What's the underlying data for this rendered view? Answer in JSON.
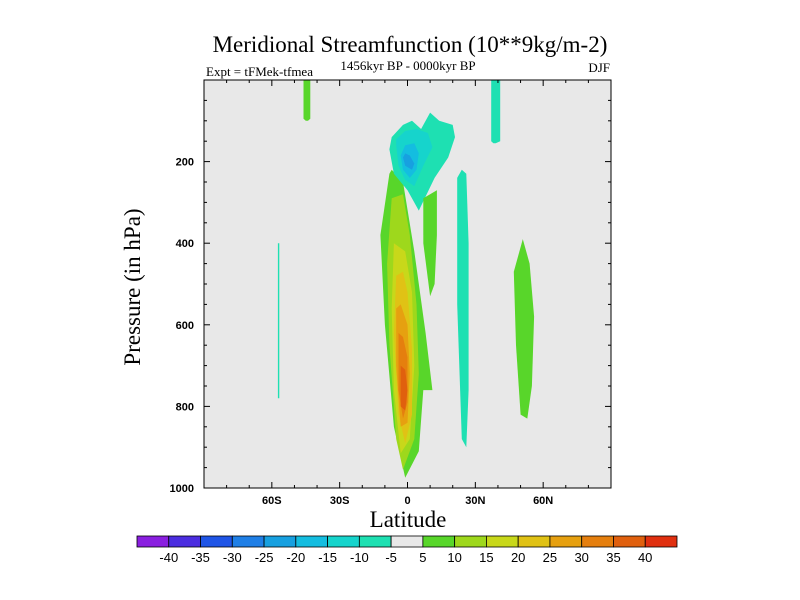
{
  "chart_data": {
    "type": "contour",
    "title": "Meridional Streamfunction (10**9kg/m-2)",
    "subtitle": "1456kyr BP - 0000kyr BP",
    "left_label": "Expt = tFMek-tfmea",
    "right_label": "DJF",
    "xlabel": "Latitude",
    "ylabel": "Pressure (in hPa)",
    "xlim": [
      -90,
      90
    ],
    "ylim": [
      0,
      1000
    ],
    "y_inverted": true,
    "x_ticks": [
      {
        "value": -60,
        "label": "60S"
      },
      {
        "value": -30,
        "label": "30S"
      },
      {
        "value": 0,
        "label": "0"
      },
      {
        "value": 30,
        "label": "30N"
      },
      {
        "value": 60,
        "label": "60N"
      }
    ],
    "y_ticks": [
      {
        "value": 200,
        "label": "200"
      },
      {
        "value": 400,
        "label": "400"
      },
      {
        "value": 600,
        "label": "600"
      },
      {
        "value": 800,
        "label": "800"
      },
      {
        "value": 1000,
        "label": "1000"
      }
    ],
    "contour_levels": [
      "-40",
      "-35",
      "-30",
      "-25",
      "-20",
      "-15",
      "-10",
      "-5",
      "5",
      "10",
      "15",
      "20",
      "25",
      "30",
      "35",
      "40"
    ],
    "colors": [
      "#8a1fe0",
      "#4b2de0",
      "#1f55e6",
      "#1f7fe6",
      "#17a0e0",
      "#14bde0",
      "#16d4cc",
      "#1ee0b2",
      "#e8e8e8",
      "#58d62a",
      "#9ed81c",
      "#c8d81a",
      "#e0c215",
      "#e6a010",
      "#e57f0e",
      "#e0600e",
      "#e03010"
    ],
    "background_color": "#e8e8e8",
    "regions": [
      {
        "name": "positive-cell-5",
        "level_index": 9,
        "lat": [
          -8,
          -12,
          -10,
          -6,
          -1,
          5,
          7,
          11,
          8,
          3,
          -2,
          -7
        ],
        "p": [
          230,
          380,
          600,
          850,
          975,
          910,
          760,
          760,
          620,
          420,
          250,
          220
        ]
      },
      {
        "name": "positive-cell-10",
        "level_index": 10,
        "lat": [
          -7,
          -9,
          -8,
          -5,
          -2,
          3,
          5,
          4,
          1,
          -2
        ],
        "p": [
          290,
          450,
          650,
          880,
          955,
          880,
          720,
          550,
          380,
          280
        ]
      },
      {
        "name": "positive-cell-15",
        "level_index": 11,
        "lat": [
          -6,
          -7,
          -6,
          -3,
          1,
          3,
          2,
          -1
        ],
        "p": [
          400,
          560,
          760,
          915,
          880,
          700,
          520,
          420
        ]
      },
      {
        "name": "positive-cell-20",
        "level_index": 12,
        "lat": [
          -5,
          -6,
          -4,
          -1,
          2,
          2,
          0,
          -2
        ],
        "p": [
          480,
          620,
          820,
          890,
          820,
          660,
          520,
          470
        ]
      },
      {
        "name": "positive-cell-25",
        "level_index": 13,
        "lat": [
          -5,
          -5,
          -3,
          0,
          1,
          0,
          -3
        ],
        "p": [
          560,
          700,
          850,
          840,
          720,
          600,
          550
        ]
      },
      {
        "name": "positive-cell-30",
        "level_index": 14,
        "lat": [
          -4,
          -4,
          -2,
          0,
          0,
          -2
        ],
        "p": [
          620,
          760,
          830,
          790,
          680,
          630
        ]
      },
      {
        "name": "positive-cell-35",
        "level_index": 15,
        "lat": [
          -3,
          -3,
          -1,
          0,
          -1
        ],
        "p": [
          700,
          800,
          810,
          760,
          710
        ]
      },
      {
        "name": "negative-upper-minus5",
        "level_index": 7,
        "lat": [
          -8,
          -6,
          0,
          5,
          12,
          18,
          21,
          20,
          14,
          10,
          6,
          2,
          -2,
          -7
        ],
        "p": [
          170,
          230,
          270,
          320,
          240,
          190,
          140,
          110,
          100,
          80,
          120,
          100,
          110,
          140
        ]
      },
      {
        "name": "negative-upper-minus10",
        "level_index": 6,
        "lat": [
          -5,
          -4,
          -1,
          3,
          7,
          11,
          9,
          4,
          -1,
          -5
        ],
        "p": [
          160,
          210,
          245,
          260,
          210,
          165,
          130,
          120,
          125,
          145
        ]
      },
      {
        "name": "negative-upper-minus15",
        "level_index": 5,
        "lat": [
          -3,
          -2,
          1,
          4,
          5,
          3,
          -1
        ],
        "p": [
          185,
          220,
          240,
          220,
          180,
          155,
          160
        ]
      },
      {
        "name": "negative-upper-minus20",
        "level_index": 4,
        "lat": [
          -2,
          -1,
          2,
          3,
          1,
          -1
        ],
        "p": [
          190,
          210,
          220,
          205,
          185,
          180
        ]
      },
      {
        "name": "nh-30n-cell",
        "level_index": 7,
        "lat": [
          22,
          22,
          24,
          26,
          27,
          27,
          26,
          24
        ],
        "p": [
          240,
          550,
          880,
          900,
          760,
          400,
          230,
          220
        ]
      },
      {
        "name": "nh-15n-cell",
        "level_index": 9,
        "lat": [
          7,
          7,
          10,
          12,
          13,
          13,
          10
        ],
        "p": [
          290,
          400,
          530,
          500,
          380,
          270,
          280
        ]
      },
      {
        "name": "nh-50n-cell",
        "level_index": 9,
        "lat": [
          47,
          48,
          50,
          53,
          55,
          56,
          54,
          51
        ],
        "p": [
          470,
          650,
          820,
          830,
          750,
          580,
          450,
          390
        ]
      },
      {
        "name": "sh-strip-top-left",
        "level_index": 9,
        "lat": [
          -46,
          -46,
          -45,
          -44,
          -43,
          -43
        ],
        "p": [
          0,
          95,
          100,
          100,
          95,
          0
        ]
      },
      {
        "name": "nh-strip-top-right",
        "level_index": 7,
        "lat": [
          37,
          37,
          38,
          39,
          41,
          41
        ],
        "p": [
          0,
          150,
          155,
          155,
          150,
          0
        ]
      },
      {
        "name": "sh-strip-left",
        "level_index": 7,
        "lat": [
          -57.3,
          -57.3,
          -56.7,
          -56.7
        ],
        "p": [
          400,
          780,
          780,
          400
        ]
      }
    ]
  }
}
